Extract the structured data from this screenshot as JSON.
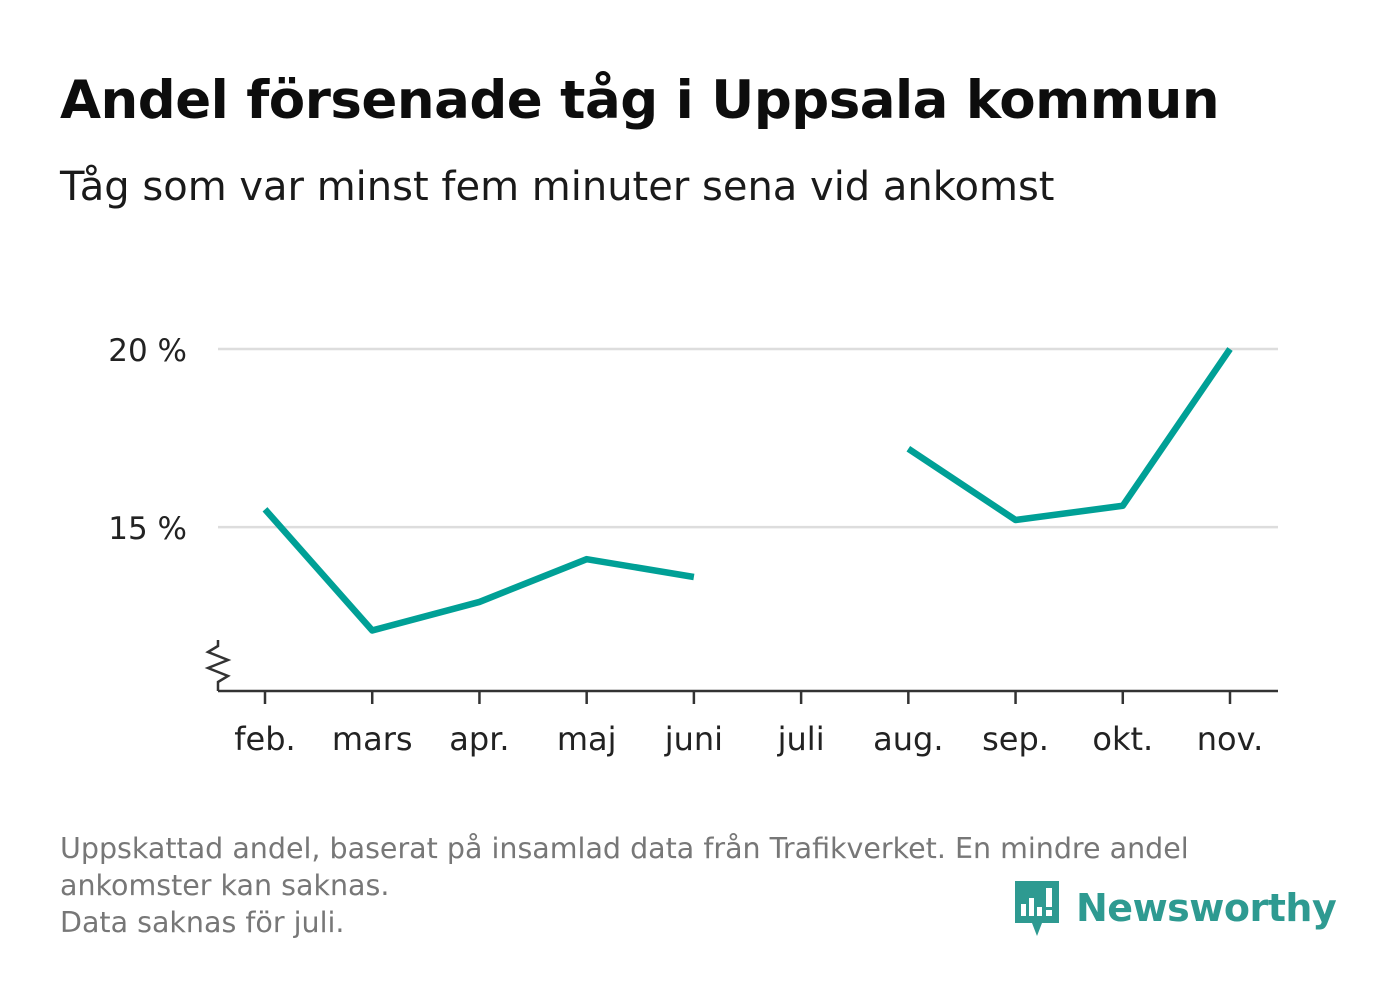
{
  "title": "Andel försenade tåg i Uppsala kommun",
  "subtitle": "Tåg som var minst fem minuter sena vid ankomst",
  "footnote": {
    "line1": "Uppskattad andel, baserat på insamlad data från Trafikverket. En mindre andel",
    "line2": "ankomster kan saknas.",
    "line3": "Data saknas för juli."
  },
  "brand": {
    "name": "Newsworthy",
    "icon": "newsworthy-logo-icon",
    "color": "#2e9a91"
  },
  "colors": {
    "line": "#00a096",
    "grid": "#dddddd",
    "axis": "#333333",
    "tick_label": "#222222"
  },
  "chart_data": {
    "type": "line",
    "categories": [
      "feb.",
      "mars",
      "apr.",
      "maj",
      "juni",
      "juli",
      "aug.",
      "sep.",
      "okt.",
      "nov."
    ],
    "series": [
      {
        "values": [
          15.5,
          12.1,
          12.9,
          14.1,
          13.6,
          null,
          17.2,
          15.2,
          15.6,
          20.0
        ]
      }
    ],
    "yticks": [
      15,
      20
    ],
    "ytick_labels": [
      "15 %",
      "20 %"
    ],
    "ylim": [
      10.4,
      20.0
    ],
    "y_axis_broken": true,
    "grid": "horizontal",
    "legend": "none",
    "xlabel": "",
    "ylabel": ""
  }
}
